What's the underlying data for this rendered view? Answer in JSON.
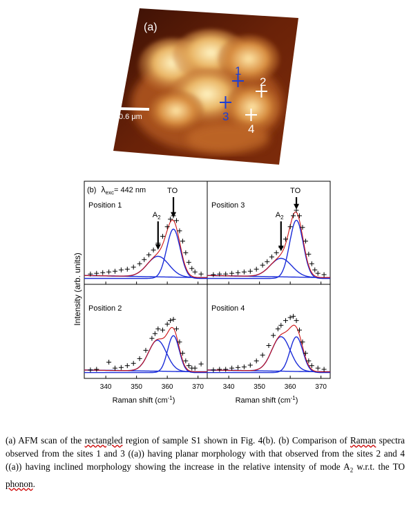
{
  "afm_panel": {
    "label": "(a)",
    "scale_bar": "0.6 μm",
    "site_markers": [
      {
        "label": "1",
        "color": "#1c3fd6"
      },
      {
        "label": "2",
        "color": "#ffffff"
      },
      {
        "label": "3",
        "color": "#1c3fd6"
      },
      {
        "label": "4",
        "color": "#ffffff"
      }
    ]
  },
  "chart_data": {
    "type": "line",
    "panel_label": "(b)",
    "excitation_prefix": "λ",
    "excitation_subscript": "exc",
    "excitation_value": "= 442 nm",
    "ylabel": "Intensity (arb. units)",
    "xlabel": "Raman shift (cm",
    "xlabel_sup": "-1",
    "xlabel_end": ")",
    "xlim": [
      333,
      373
    ],
    "xticks": [
      340,
      350,
      360,
      370
    ],
    "series_colors": {
      "data": "#000000",
      "fit_total": "#cc1111",
      "components": "#1a2cd8"
    },
    "subplots": [
      {
        "title": "Position 1",
        "annotations": [
          {
            "text": "A",
            "sub": "2",
            "x": 357
          },
          {
            "text": "TO",
            "x": 362
          }
        ],
        "data_points": [
          [
            335,
            0.07
          ],
          [
            337,
            0.08
          ],
          [
            339,
            0.09
          ],
          [
            341,
            0.1
          ],
          [
            343,
            0.11
          ],
          [
            345,
            0.13
          ],
          [
            347,
            0.14
          ],
          [
            349,
            0.17
          ],
          [
            351,
            0.22
          ],
          [
            352.5,
            0.28
          ],
          [
            354,
            0.35
          ],
          [
            355.5,
            0.42
          ],
          [
            357,
            0.52
          ],
          [
            358.5,
            0.62
          ],
          [
            360,
            0.76
          ],
          [
            361,
            0.87
          ],
          [
            362,
            0.92
          ],
          [
            363,
            0.85
          ],
          [
            364,
            0.7
          ],
          [
            365,
            0.55
          ],
          [
            366,
            0.38
          ],
          [
            367,
            0.24
          ],
          [
            368,
            0.15
          ],
          [
            369,
            0.1
          ],
          [
            371,
            0.07
          ]
        ],
        "components": [
          {
            "center": 357,
            "amp": 0.3,
            "width": 3.5,
            "baseline": "tail"
          },
          {
            "center": 362,
            "amp": 0.72,
            "width": 2.2
          }
        ]
      },
      {
        "title": "Position 3",
        "annotations": [
          {
            "text": "A",
            "sub": "2",
            "x": 357
          },
          {
            "text": "TO",
            "x": 362
          }
        ],
        "data_points": [
          [
            335,
            0.06
          ],
          [
            337,
            0.07
          ],
          [
            339,
            0.07
          ],
          [
            341,
            0.08
          ],
          [
            343,
            0.09
          ],
          [
            345,
            0.1
          ],
          [
            347,
            0.11
          ],
          [
            349,
            0.14
          ],
          [
            351,
            0.2
          ],
          [
            352.5,
            0.25
          ],
          [
            354,
            0.32
          ],
          [
            355.5,
            0.38
          ],
          [
            357,
            0.46
          ],
          [
            358.5,
            0.58
          ],
          [
            360,
            0.76
          ],
          [
            361,
            0.92
          ],
          [
            362,
            1.0
          ],
          [
            363,
            0.92
          ],
          [
            364,
            0.75
          ],
          [
            365,
            0.55
          ],
          [
            366,
            0.36
          ],
          [
            367,
            0.22
          ],
          [
            368,
            0.13
          ],
          [
            369,
            0.08
          ],
          [
            371,
            0.06
          ]
        ],
        "components": [
          {
            "center": 357,
            "amp": 0.27,
            "width": 3.5,
            "baseline": "tail"
          },
          {
            "center": 362,
            "amp": 0.85,
            "width": 2.2
          }
        ]
      },
      {
        "title": "Position 2",
        "annotations": [],
        "data_points": [
          [
            335,
            0.05
          ],
          [
            337,
            0.06
          ],
          [
            341,
            0.18
          ],
          [
            343,
            0.08
          ],
          [
            345,
            0.09
          ],
          [
            347,
            0.12
          ],
          [
            349,
            0.16
          ],
          [
            351,
            0.24
          ],
          [
            353,
            0.38
          ],
          [
            355,
            0.58
          ],
          [
            356,
            0.66
          ],
          [
            357,
            0.74
          ],
          [
            358.5,
            0.72
          ],
          [
            360,
            0.82
          ],
          [
            361,
            0.88
          ],
          [
            362,
            0.9
          ],
          [
            363,
            0.74
          ],
          [
            364,
            0.52
          ],
          [
            365,
            0.33
          ],
          [
            366,
            0.2
          ],
          [
            367,
            0.12
          ],
          [
            368,
            0.08
          ],
          [
            369,
            0.08
          ],
          [
            371,
            0.15
          ]
        ],
        "components": [
          {
            "center": 356.8,
            "amp": 0.52,
            "width": 2.9,
            "baseline": "tail"
          },
          {
            "center": 362,
            "amp": 0.62,
            "width": 1.9
          }
        ]
      },
      {
        "title": "Position 4",
        "annotations": [],
        "data_points": [
          [
            335,
            0.05
          ],
          [
            337,
            0.06
          ],
          [
            339,
            0.06
          ],
          [
            341,
            0.08
          ],
          [
            343,
            0.09
          ],
          [
            345,
            0.1
          ],
          [
            347,
            0.13
          ],
          [
            349,
            0.2
          ],
          [
            351,
            0.3
          ],
          [
            353,
            0.46
          ],
          [
            354.5,
            0.63
          ],
          [
            356,
            0.74
          ],
          [
            357,
            0.8
          ],
          [
            358.5,
            0.88
          ],
          [
            360,
            0.93
          ],
          [
            361,
            0.95
          ],
          [
            362,
            0.88
          ],
          [
            363,
            0.72
          ],
          [
            364,
            0.52
          ],
          [
            365,
            0.33
          ],
          [
            366,
            0.2
          ],
          [
            367,
            0.12
          ],
          [
            369,
            0.08
          ],
          [
            371,
            0.06
          ]
        ],
        "components": [
          {
            "center": 357,
            "amp": 0.58,
            "width": 3.0,
            "baseline": "tail"
          },
          {
            "center": 362,
            "amp": 0.6,
            "width": 2.1
          }
        ]
      }
    ]
  },
  "caption": {
    "p1": "(a) AFM scan of the ",
    "rectangled": "rectangled",
    "p2": " region of sample S1 shown in Fig. 4(b). (b) Comparison of ",
    "raman": "Raman",
    "p3": " spectra observed from the sites 1 and 3 ((a)) having planar morphology with that observed from the sites 2 and 4 ((a)) having inclined morphology showing the increase in the relative intensity of mode A",
    "a2sub": "2",
    "p4": " w.r.t. the TO ",
    "phonon": "phonon",
    "p5": "."
  }
}
